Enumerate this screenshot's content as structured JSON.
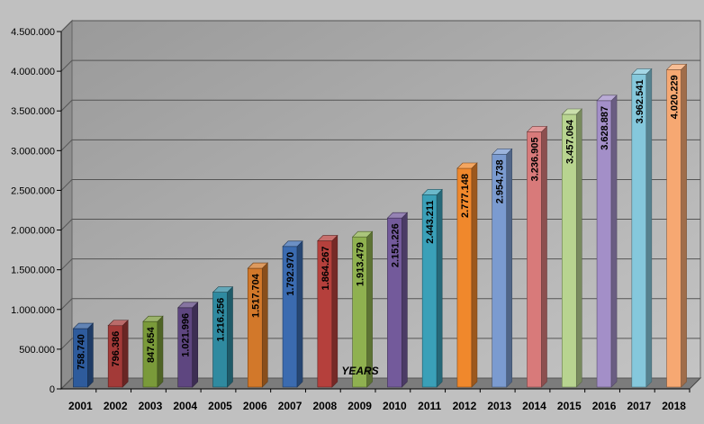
{
  "chart_data": {
    "type": "bar",
    "title": "",
    "xlabel": "YEARS",
    "ylabel": "",
    "ylim": [
      0,
      4500000
    ],
    "yticks": [
      "0",
      "500.000",
      "1.000.000",
      "1.500.000",
      "2.000.000",
      "2.500.000",
      "3.000.000",
      "3.500.000",
      "4.000.000",
      "4.500.000"
    ],
    "ytick_values": [
      0,
      500000,
      1000000,
      1500000,
      2000000,
      2500000,
      3000000,
      3500000,
      4000000,
      4500000
    ],
    "categories": [
      "2001",
      "2002",
      "2003",
      "2004",
      "2005",
      "2006",
      "2007",
      "2008",
      "2009",
      "2010",
      "2011",
      "2012",
      "2013",
      "2014",
      "2015",
      "2016",
      "2017",
      "2018"
    ],
    "values": [
      758740,
      796386,
      847654,
      1021996,
      1216256,
      1517704,
      1792970,
      1864267,
      1913479,
      2151226,
      2443211,
      2777148,
      2954738,
      3236905,
      3457064,
      3628887,
      3962541,
      4020229
    ],
    "value_labels": [
      "758.740",
      "796.386",
      "847.654",
      "1.021.996",
      "1.216.256",
      "1.517.704",
      "1.792.970",
      "1.864.267",
      "1.913.479",
      "2.151.226",
      "2.443.211",
      "2.777.148",
      "2.954.738",
      "3.236.905",
      "3.457.064",
      "3.628.887",
      "3.962.541",
      "4.020.229"
    ],
    "colors": [
      "#2e5b9c",
      "#a33a38",
      "#7a9a3a",
      "#5e4680",
      "#2f8aa0",
      "#d2782a",
      "#3b6bb0",
      "#b5403c",
      "#8fb150",
      "#735a9b",
      "#3aa0b8",
      "#f0882c",
      "#7b9bd0",
      "#d87a7a",
      "#b8d490",
      "#a38fc8",
      "#85c8dc",
      "#f6a872"
    ],
    "grid": true,
    "legend": "none"
  }
}
